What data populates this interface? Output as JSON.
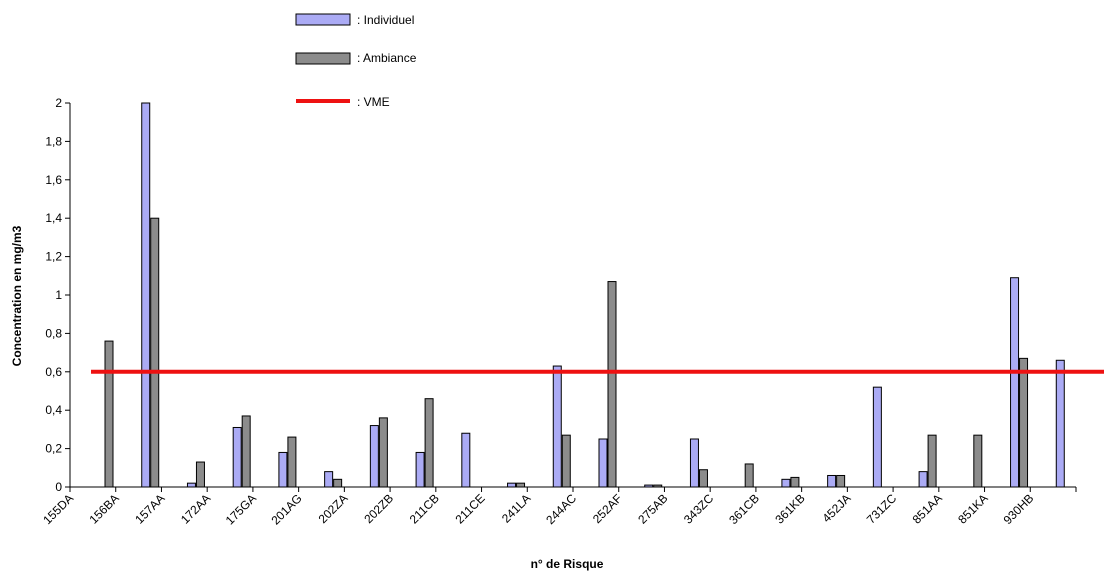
{
  "chart_data": {
    "type": "bar",
    "title": "",
    "xlabel": "n° de Risque",
    "ylabel": "Concentration en mg/m3",
    "ylim": [
      0,
      2
    ],
    "yticks": [
      "0",
      "0,2",
      "0,4",
      "0,6",
      "0,8",
      "1",
      "1,2",
      "1,4",
      "1,6",
      "1,8",
      "2"
    ],
    "grid": false,
    "legend_position": "top-left",
    "categories": [
      "155DA",
      "156BA",
      "157AA",
      "172AA",
      "175GA",
      "201AG",
      "202ZA",
      "202ZB",
      "211CB",
      "211CE",
      "241LA",
      "244AC",
      "252AF",
      "275AB",
      "343ZC",
      "361CB",
      "361KB",
      "452JA",
      "731ZC",
      "851AA",
      "851KA",
      "930HB"
    ],
    "series": [
      {
        "name": ": Individuel",
        "color": "#ababf5",
        "values": [
          0,
          2.05,
          0.02,
          0.31,
          0.18,
          0.08,
          0.32,
          0.18,
          0.28,
          0.02,
          0.63,
          0.25,
          0.01,
          0.25,
          0,
          0.04,
          0.06,
          0.52,
          0.08,
          0,
          1.09,
          0.66
        ]
      },
      {
        "name": ": Ambiance",
        "color": "#8c8c8c",
        "values": [
          0.76,
          1.4,
          0.13,
          0.37,
          0.26,
          0.04,
          0.36,
          0.46,
          0,
          0.02,
          0.27,
          1.07,
          0.01,
          0.09,
          0.12,
          0.05,
          0.06,
          0,
          0.27,
          0.27,
          0.67,
          0
        ]
      }
    ],
    "reference_line": {
      "name": ": VME",
      "value": 0.6,
      "color": "#ee1111"
    }
  }
}
